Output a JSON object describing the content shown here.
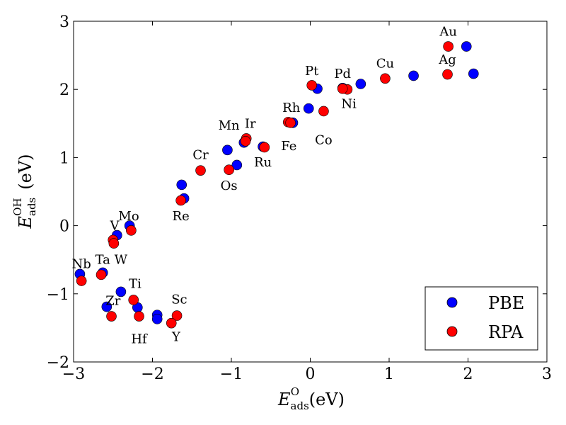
{
  "chart_data": {
    "type": "scatter",
    "title": "",
    "xlabel": {
      "main": "E",
      "sub": "ads",
      "sup": "O",
      "unit": " (eV)"
    },
    "ylabel": {
      "main": "E",
      "sub": "ads",
      "sup": "OH",
      "unit": " (eV)"
    },
    "xlim": [
      -3,
      3
    ],
    "ylim": [
      -2,
      3
    ],
    "xticks": [
      -3,
      -2,
      -1,
      0,
      1,
      2,
      3
    ],
    "yticks": [
      -2,
      -1,
      0,
      1,
      2,
      3
    ],
    "xtick_labels": [
      "−3",
      "−2",
      "−1",
      "0",
      "1",
      "2",
      "3"
    ],
    "ytick_labels": [
      "−2",
      "−1",
      "0",
      "1",
      "2",
      "3"
    ],
    "legend": {
      "placement": "bottom-right",
      "entries": [
        "PBE",
        "RPA"
      ]
    },
    "series": [
      {
        "name": "PBE",
        "color": "#0000ff",
        "points": [
          [
            1.98,
            2.63
          ],
          [
            2.07,
            2.23
          ],
          [
            1.31,
            2.2
          ],
          [
            0.64,
            2.08
          ],
          [
            0.41,
            2.02
          ],
          [
            0.09,
            2.01
          ],
          [
            -0.02,
            1.72
          ],
          [
            -0.22,
            1.51
          ],
          [
            -0.6,
            1.16
          ],
          [
            -0.84,
            1.22
          ],
          [
            -1.05,
            1.11
          ],
          [
            -0.93,
            0.89
          ],
          [
            -1.6,
            0.4
          ],
          [
            -1.63,
            0.6
          ],
          [
            -2.29,
            0.0
          ],
          [
            -2.45,
            -0.14
          ],
          [
            -2.63,
            -0.69
          ],
          [
            -2.92,
            -0.71
          ],
          [
            -2.4,
            -0.97
          ],
          [
            -2.58,
            -1.19
          ],
          [
            -2.19,
            -1.2
          ],
          [
            -1.94,
            -1.31
          ],
          [
            -1.94,
            -1.37
          ]
        ]
      },
      {
        "name": "RPA",
        "color": "#ff0000",
        "points": [
          [
            1.75,
            2.63
          ],
          [
            1.74,
            2.22
          ],
          [
            0.95,
            2.16
          ],
          [
            0.47,
            2.0
          ],
          [
            0.41,
            2.01
          ],
          [
            0.02,
            2.06
          ],
          [
            0.17,
            1.68
          ],
          [
            -0.28,
            1.52
          ],
          [
            -0.25,
            1.51
          ],
          [
            -0.58,
            1.15
          ],
          [
            -0.81,
            1.28
          ],
          [
            -0.82,
            1.24
          ],
          [
            -1.03,
            0.82
          ],
          [
            -1.39,
            0.81
          ],
          [
            -1.64,
            0.37
          ],
          [
            -2.27,
            -0.07
          ],
          [
            -2.5,
            -0.21
          ],
          [
            -2.49,
            -0.26
          ],
          [
            -2.65,
            -0.72
          ],
          [
            -2.9,
            -0.81
          ],
          [
            -2.24,
            -1.09
          ],
          [
            -2.52,
            -1.33
          ],
          [
            -2.17,
            -1.33
          ],
          [
            -1.69,
            -1.32
          ],
          [
            -1.76,
            -1.43
          ]
        ]
      }
    ],
    "annotations": [
      {
        "text": "Au",
        "x": 1.75,
        "y": 2.85
      },
      {
        "text": "Ag",
        "x": 1.74,
        "y": 2.44
      },
      {
        "text": "Cu",
        "x": 0.95,
        "y": 2.38
      },
      {
        "text": "Pd",
        "x": 0.41,
        "y": 2.23
      },
      {
        "text": "Pt",
        "x": 0.02,
        "y": 2.27
      },
      {
        "text": "Ni",
        "x": 0.49,
        "y": 1.79
      },
      {
        "text": "Rh",
        "x": -0.24,
        "y": 1.73
      },
      {
        "text": "Co",
        "x": 0.17,
        "y": 1.26
      },
      {
        "text": "Fe",
        "x": -0.27,
        "y": 1.17
      },
      {
        "text": "Ir",
        "x": -0.76,
        "y": 1.5
      },
      {
        "text": "Mn",
        "x": -1.03,
        "y": 1.47
      },
      {
        "text": "Ru",
        "x": -0.6,
        "y": 0.93
      },
      {
        "text": "Cr",
        "x": -1.39,
        "y": 1.04
      },
      {
        "text": "Os",
        "x": -1.03,
        "y": 0.59
      },
      {
        "text": "Re",
        "x": -1.64,
        "y": 0.14
      },
      {
        "text": "Mo",
        "x": -2.3,
        "y": 0.14
      },
      {
        "text": "V",
        "x": -2.48,
        "y": 0.0
      },
      {
        "text": "W",
        "x": -2.4,
        "y": -0.5
      },
      {
        "text": "Ta",
        "x": -2.63,
        "y": -0.5
      },
      {
        "text": "Nb",
        "x": -2.9,
        "y": -0.56
      },
      {
        "text": "Ti",
        "x": -2.22,
        "y": -0.85
      },
      {
        "text": "Sc",
        "x": -1.66,
        "y": -1.08
      },
      {
        "text": "Zr",
        "x": -2.5,
        "y": -1.1
      },
      {
        "text": "Hf",
        "x": -2.17,
        "y": -1.66
      },
      {
        "text": "Y",
        "x": -1.7,
        "y": -1.63
      }
    ]
  }
}
